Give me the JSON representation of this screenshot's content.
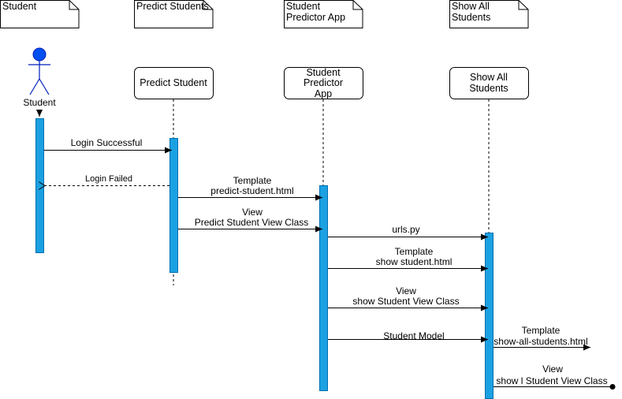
{
  "notes": {
    "student": "Student",
    "predict_students": "Predict Students",
    "student_predictor_app": [
      "Student",
      "Predictor App"
    ],
    "show_all_students": [
      "Show All",
      "Students"
    ]
  },
  "actor": {
    "label": "Student",
    "icon": "stick-figure-icon",
    "color": "#0050ef"
  },
  "lifelines": {
    "predict_student": "Predict Student",
    "student_predictor_app": [
      "Student",
      "Predictor",
      "App"
    ],
    "show_all_students": [
      "Show All",
      "Students"
    ]
  },
  "messages": {
    "login_successful": "Login Successful",
    "login_failed": "Login Failed",
    "template_predict": [
      "Template",
      "predict-student.html"
    ],
    "view_predict": [
      "View",
      "Predict Student View Class"
    ],
    "urls": "urls.py",
    "template_show": [
      "Template",
      "show student.html"
    ],
    "view_show": [
      "View",
      "show Student View Class"
    ],
    "student_model": "Student Model",
    "template_all": [
      "Template",
      "show-all-students.html"
    ],
    "view_all": [
      "View",
      "show l Student View Class"
    ]
  },
  "colors": {
    "activation": "#1ba1e2",
    "actor": "#0050ef"
  }
}
